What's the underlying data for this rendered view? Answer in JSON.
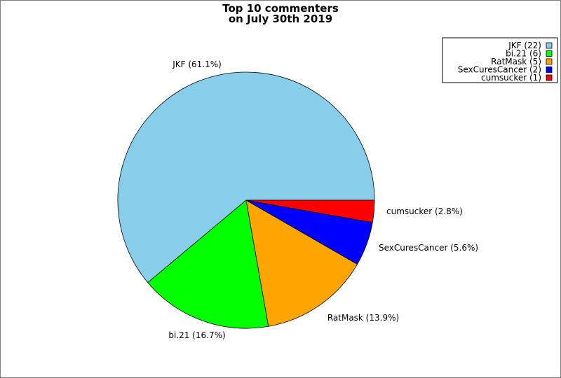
{
  "chart_data": {
    "type": "pie",
    "title": "Top 10 commenters",
    "subtitle": "on July 30th 2019",
    "legend_position": "top-right",
    "grid": false,
    "slices": [
      {
        "name": "JKF",
        "value": 22,
        "percent_label": "JKF (61.1%)",
        "legend_label": "JKF (22)",
        "color": "#87ceeb"
      },
      {
        "name": "bi.21",
        "value": 6,
        "percent_label": "bi.21 (16.7%)",
        "legend_label": "bi.21 (6)",
        "color": "#00ff00"
      },
      {
        "name": "RatMask",
        "value": 5,
        "percent_label": "RatMask (13.9%)",
        "legend_label": "RatMask (5)",
        "color": "#ffa500"
      },
      {
        "name": "SexCuresCancer",
        "value": 2,
        "percent_label": "SexCuresCancer (5.6%)",
        "legend_label": "SexCuresCancer (2)",
        "color": "#0000ff"
      },
      {
        "name": "cumsucker",
        "value": 1,
        "percent_label": "cumsucker (2.8%)",
        "legend_label": "cumsucker (1)",
        "color": "#ff0000"
      }
    ]
  }
}
